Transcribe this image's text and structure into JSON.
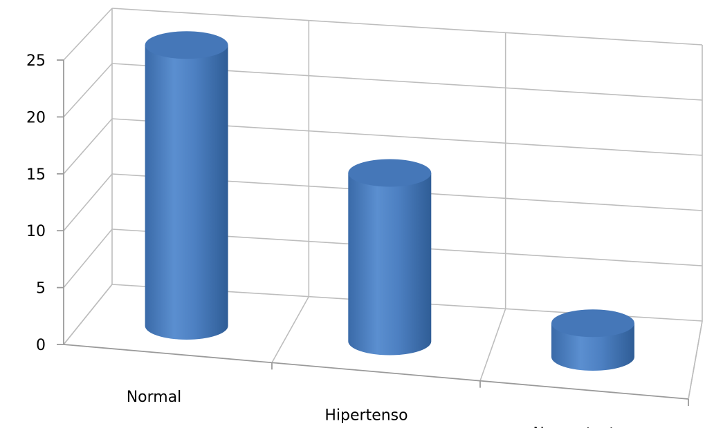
{
  "chart_data": {
    "type": "bar",
    "style": "3d-cylinder",
    "categories": [
      "Normal",
      "Hipertenso",
      "No contesta"
    ],
    "values": [
      25,
      15,
      3
    ],
    "title": "",
    "xlabel": "",
    "ylabel": "",
    "ylim": [
      0,
      25
    ],
    "yticks": [
      "0",
      "5",
      "10",
      "15",
      "20",
      "25"
    ],
    "grid": true,
    "legend": "none",
    "bar_color": "#4a7ebb"
  }
}
